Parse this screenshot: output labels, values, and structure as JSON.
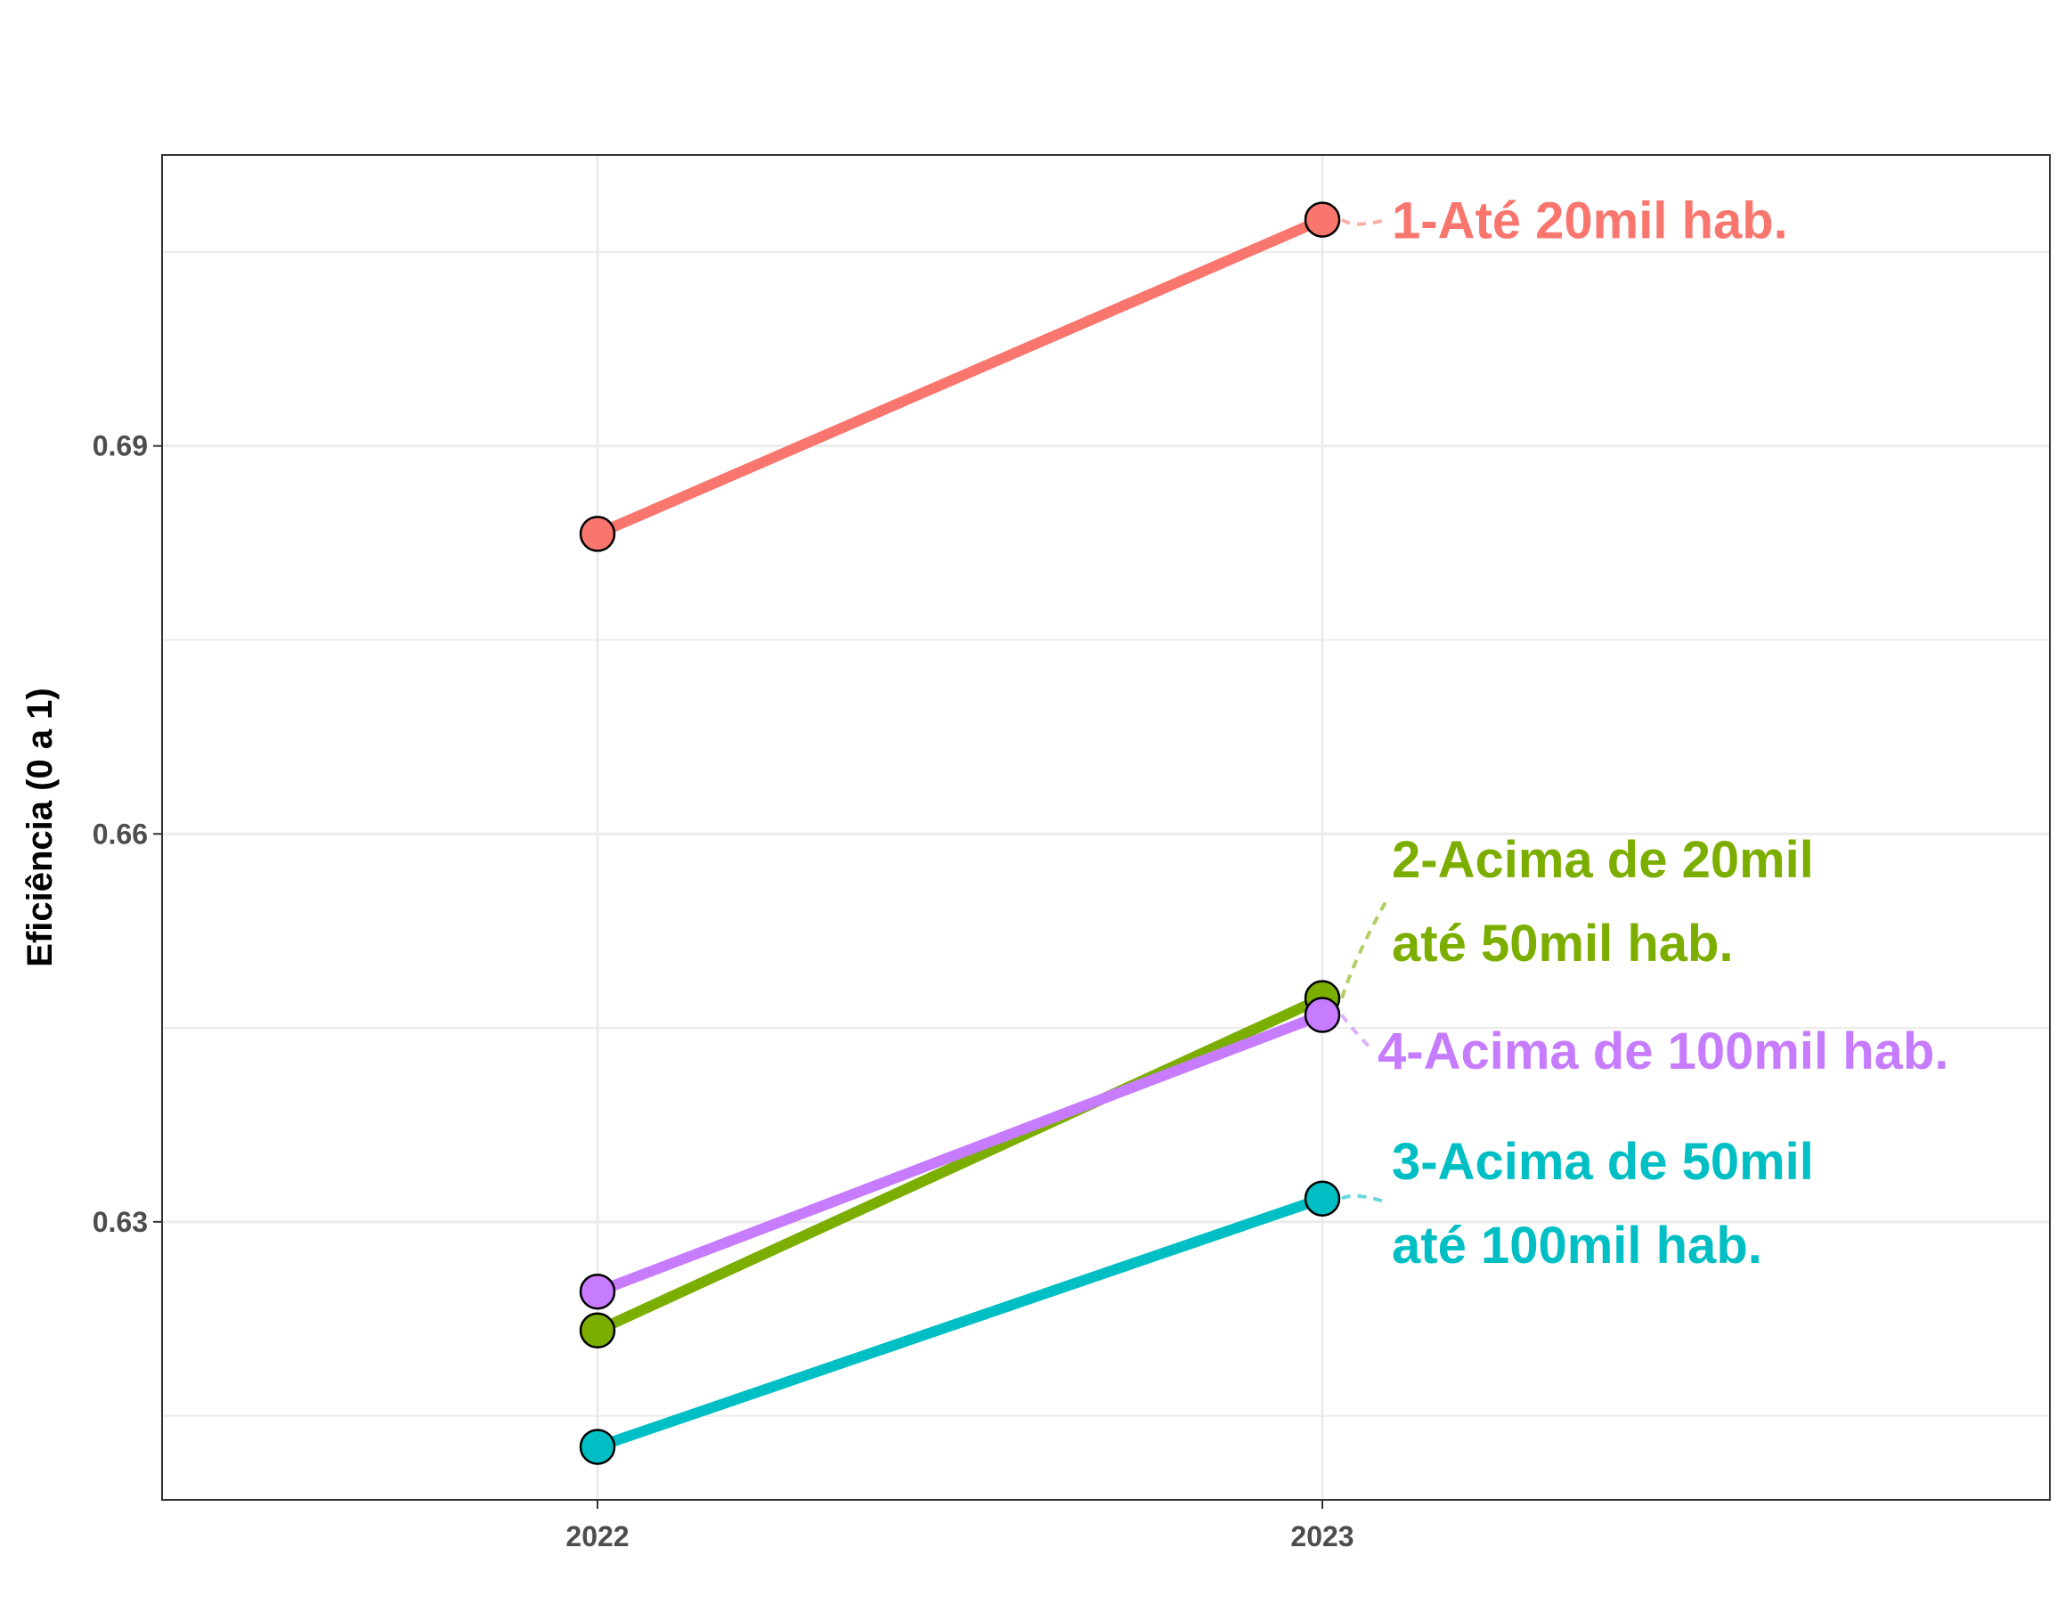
{
  "chart_data": {
    "type": "line",
    "title": "",
    "xlabel": "",
    "ylabel": "Eficiência (0 a 1)",
    "x": [
      "2022",
      "2023"
    ],
    "y_ticks": [
      "0.63",
      "0.66",
      "0.69"
    ],
    "ylim": [
      0.6085,
      0.7125
    ],
    "grid": true,
    "legend": "direct labels at right of series end points",
    "series": [
      {
        "name": "1-Até 20mil hab.",
        "label_lines": [
          "1-Até 20mil hab."
        ],
        "values": [
          0.6832,
          0.7075
        ],
        "color": "#F8766D"
      },
      {
        "name": "2-Acima de 20mil até 50mil hab.",
        "label_lines": [
          "2-Acima de 20mil",
          "até 50mil hab."
        ],
        "values": [
          0.6216,
          0.6473
        ],
        "color": "#7CAE00"
      },
      {
        "name": "3-Acima de 50mil até 100mil hab.",
        "label_lines": [
          "3-Acima de 50mil",
          "até 100mil hab."
        ],
        "values": [
          0.6126,
          0.6318
        ],
        "color": "#00BFC4"
      },
      {
        "name": "4-Acima de 100mil hab.",
        "label_lines": [
          "4-Acima de 100mil hab."
        ],
        "values": [
          0.6246,
          0.646
        ],
        "color": "#C77CFF"
      }
    ]
  }
}
